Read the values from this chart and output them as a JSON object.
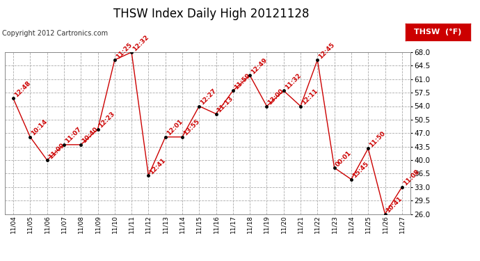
{
  "title": "THSW Index Daily High 20121128",
  "copyright": "Copyright 2012 Cartronics.com",
  "legend_label": "THSW  (°F)",
  "dates": [
    "11/04",
    "11/05",
    "11/06",
    "11/07",
    "11/08",
    "11/09",
    "11/10",
    "11/11",
    "11/12",
    "11/13",
    "11/14",
    "11/15",
    "11/16",
    "11/17",
    "11/18",
    "11/19",
    "11/20",
    "11/21",
    "11/22",
    "11/23",
    "11/24",
    "11/25",
    "11/26",
    "11/27"
  ],
  "values": [
    56.0,
    46.0,
    40.0,
    44.0,
    44.0,
    48.0,
    66.0,
    68.0,
    36.0,
    46.0,
    46.0,
    54.0,
    52.0,
    58.0,
    62.0,
    54.0,
    58.0,
    54.0,
    66.0,
    38.0,
    35.0,
    43.0,
    26.0,
    33.0
  ],
  "times": [
    "12:48",
    "10:14",
    "11:09",
    "11:07",
    "10:40",
    "12:23",
    "11:25",
    "12:32",
    "12:41",
    "12:01",
    "13:55",
    "12:27",
    "11:13",
    "11:59",
    "12:49",
    "13:00",
    "11:32",
    "12:11",
    "12:45",
    "00:01",
    "15:45",
    "11:50",
    "10:41",
    "11:08"
  ],
  "ylim": [
    26.0,
    68.0
  ],
  "yticks": [
    26.0,
    29.5,
    33.0,
    36.5,
    40.0,
    43.5,
    47.0,
    50.5,
    54.0,
    57.5,
    61.0,
    64.5,
    68.0
  ],
  "line_color": "#cc0000",
  "marker_color": "#000000",
  "bg_color": "#ffffff",
  "grid_color": "#aaaaaa",
  "title_fontsize": 12,
  "time_fontsize": 6.5,
  "copyright_fontsize": 7,
  "ytick_fontsize": 7.5,
  "xtick_fontsize": 6.5,
  "legend_bg": "#cc0000",
  "legend_text_color": "#ffffff",
  "legend_fontsize": 8
}
